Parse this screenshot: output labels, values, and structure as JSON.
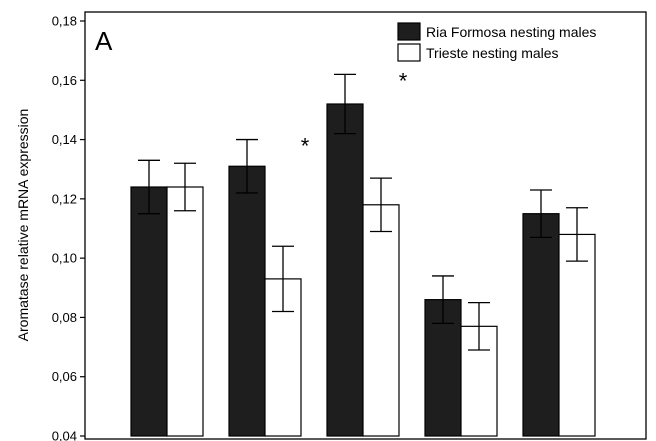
{
  "chart_data": {
    "type": "bar",
    "panel_label": "A",
    "xlabel": "",
    "ylabel": "Aromatase relative mRNA expression",
    "ylim": [
      0.04,
      0.18
    ],
    "yticks": [
      "0,04",
      "0,06",
      "0,08",
      "0,10",
      "0,12",
      "0,14",
      "0,16",
      "0,18"
    ],
    "ytick_values": [
      0.04,
      0.06,
      0.08,
      0.1,
      0.12,
      0.14,
      0.16,
      0.18
    ],
    "group_count": 5,
    "series": [
      {
        "name": "Ria Formosa nesting males",
        "color": "#1e1e1e",
        "values": [
          0.124,
          0.131,
          0.152,
          0.086,
          0.115
        ],
        "errors": [
          0.009,
          0.009,
          0.01,
          0.008,
          0.008
        ]
      },
      {
        "name": "Trieste nesting males",
        "color": "#ffffff",
        "values": [
          0.124,
          0.093,
          0.118,
          0.077,
          0.108
        ],
        "errors": [
          0.008,
          0.011,
          0.009,
          0.008,
          0.009
        ]
      }
    ],
    "significance": [
      {
        "group": 1,
        "label": "*"
      },
      {
        "group": 2,
        "label": "*"
      }
    ],
    "legend_position": "top-right"
  }
}
